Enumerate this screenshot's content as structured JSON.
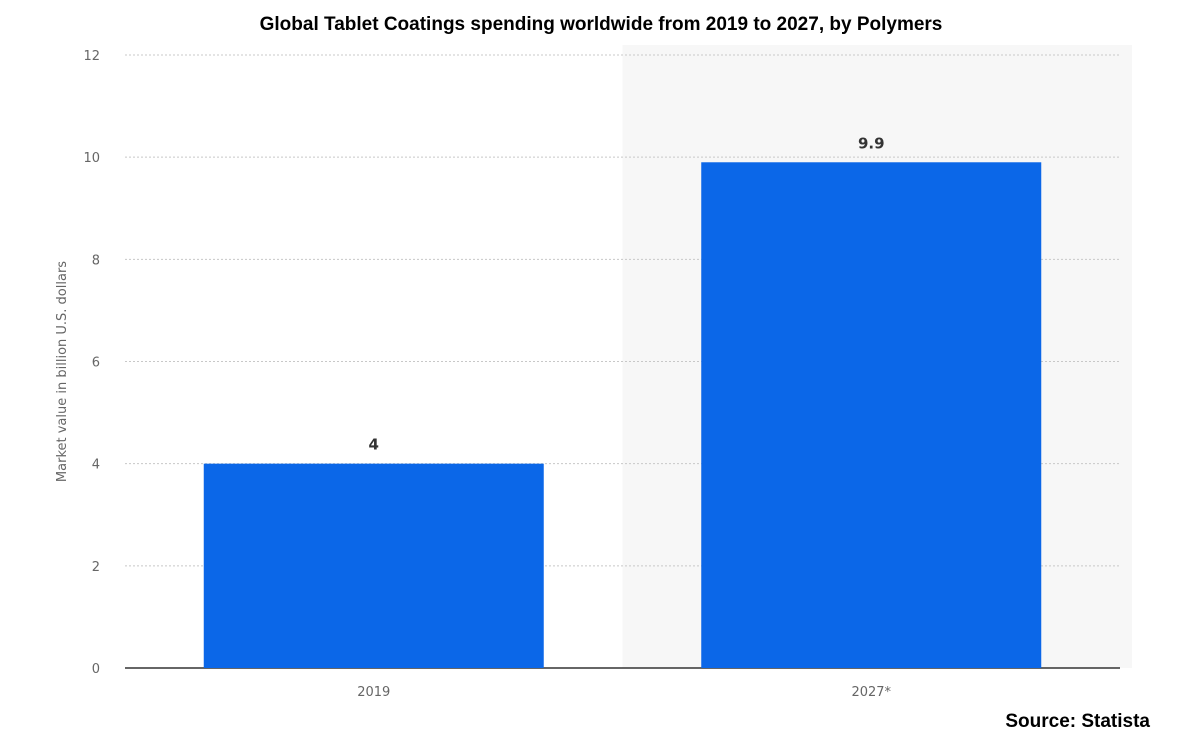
{
  "chart_data": {
    "type": "bar",
    "title": "Global Tablet Coatings spending worldwide from 2019 to 2027, by Polymers",
    "categories": [
      "2019",
      "2027*"
    ],
    "values": [
      4,
      9.9
    ],
    "data_labels": [
      "4",
      "9.9"
    ],
    "xlabel": "",
    "ylabel": "Market value in billion U.S. dollars",
    "ylim": [
      0,
      12
    ],
    "yticks": [
      0,
      2,
      4,
      6,
      8,
      10,
      12
    ],
    "grid": true,
    "forecast_shaded_from": "2027*",
    "bar_color": "#0b67e8",
    "forecast_bg_color": "#f7f7f7",
    "source": "Source: Statista"
  }
}
